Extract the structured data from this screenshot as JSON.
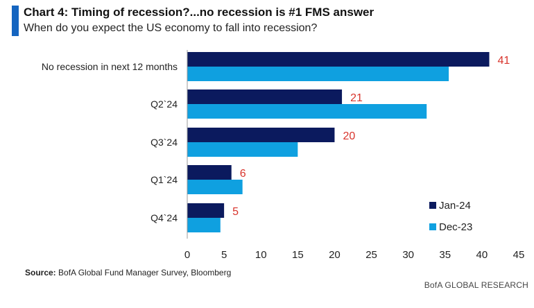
{
  "colors": {
    "accent": "#1565c0",
    "jan": "#0b1a5e",
    "dec": "#0fa0e0",
    "label": "#d8342c",
    "axis": "#9a9a9a"
  },
  "header": {
    "title": "Chart 4: Timing of recession?...no recession is #1 FMS answer",
    "subtitle": "When do you expect the US economy to fall into recession?"
  },
  "footer": {
    "source_label": "Source:",
    "source_text": "BofA Global Fund Manager Survey, Bloomberg",
    "brand": "BofA GLOBAL RESEARCH"
  },
  "chart_data": {
    "type": "bar",
    "orientation": "horizontal",
    "categories": [
      "No recession in next 12 months",
      "Q2`24",
      "Q3`24",
      "Q1`24",
      "Q4`24"
    ],
    "series": [
      {
        "name": "Jan-24",
        "values": [
          41,
          21,
          20,
          6,
          5
        ]
      },
      {
        "name": "Dec-23",
        "values": [
          35.5,
          32.5,
          15,
          7.5,
          4.5
        ]
      }
    ],
    "data_labels": [
      "41",
      "21",
      "20",
      "6",
      "5"
    ],
    "xlim": [
      0,
      45
    ],
    "xticks": [
      "0",
      "5",
      "10",
      "15",
      "20",
      "25",
      "30",
      "35",
      "40",
      "45"
    ],
    "legend_position": "bottom-right",
    "grid": false
  }
}
